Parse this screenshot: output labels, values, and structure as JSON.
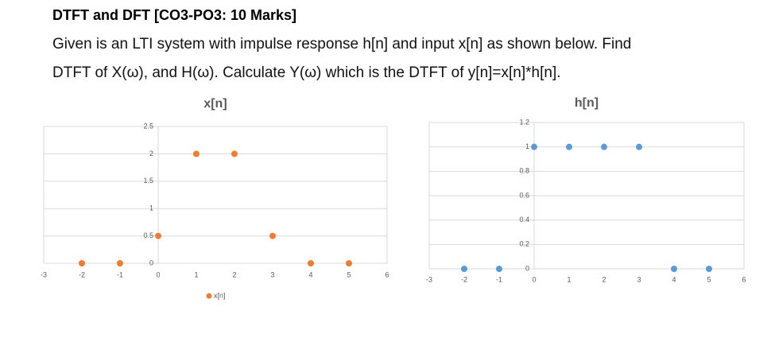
{
  "header": {
    "title": "DTFT and DFT [CO3-PO3: 10 Marks]",
    "lines": [
      "Given is an LTI system with impulse response h[n] and input x[n] as shown below. Find",
      "DTFT of X(ω), and H(ω). Calculate Y(ω) which is the DTFT of y[n]=x[n]*h[n]."
    ]
  },
  "chart_data": [
    {
      "type": "scatter",
      "title": "x[n]",
      "x": [
        -2,
        -1,
        0,
        1,
        2,
        3,
        4,
        5
      ],
      "series": [
        {
          "name": "x[n]",
          "color": "#ed7d31",
          "values": [
            0,
            0,
            0.5,
            2,
            2,
            0.5,
            0,
            0
          ]
        }
      ],
      "xlim": [
        -3,
        6
      ],
      "xticks": [
        -3,
        -2,
        -1,
        0,
        1,
        2,
        3,
        4,
        5,
        6
      ],
      "ylim": [
        0,
        2.5
      ],
      "yticks": [
        0,
        0.5,
        1,
        1.5,
        2,
        2.5
      ],
      "grid": true,
      "legend": "bottom"
    },
    {
      "type": "scatter",
      "title": "h[n]",
      "x": [
        -2,
        -1,
        0,
        1,
        2,
        3,
        4,
        5
      ],
      "color": "#5b9bd5",
      "values": [
        0,
        0,
        1,
        1,
        1,
        1,
        0,
        0
      ],
      "xlim": [
        -3,
        6
      ],
      "xticks": [
        -3,
        -2,
        -1,
        0,
        1,
        2,
        3,
        4,
        5,
        6
      ],
      "ylim": [
        0,
        1.2
      ],
      "yticks": [
        0,
        0.2,
        0.4,
        0.6,
        0.8,
        1,
        1.2
      ],
      "grid": true
    }
  ]
}
